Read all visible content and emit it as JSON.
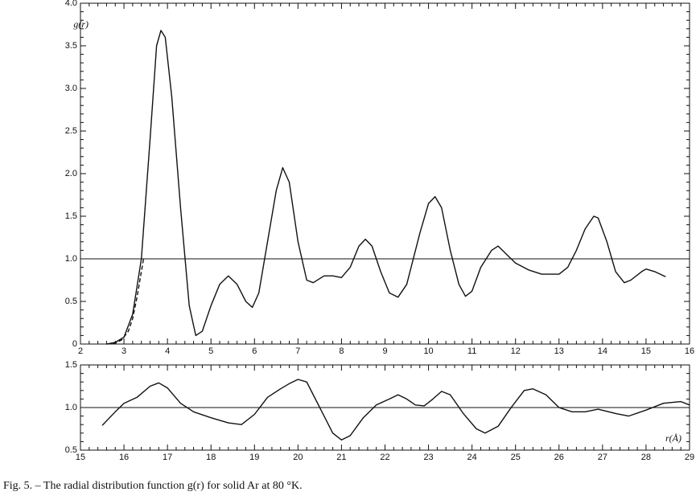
{
  "chart_data": [
    {
      "type": "line",
      "ylabel": "g(r)",
      "xlim": [
        2,
        16
      ],
      "xticks": [
        2,
        3,
        4,
        5,
        6,
        7,
        8,
        9,
        10,
        11,
        12,
        13,
        14,
        15,
        16
      ],
      "ylim": [
        0,
        4
      ],
      "yticks": [
        0,
        0.5,
        {
          "value": 1,
          "label": "1.0"
        },
        1.5,
        {
          "value": 2,
          "label": "2.0"
        },
        2.5,
        {
          "value": 3,
          "label": "3.0"
        },
        3.5,
        {
          "value": 4,
          "label": "4.0"
        }
      ],
      "reference_line": 1,
      "series": [
        {
          "color": "#111111",
          "x": [
            2.6,
            2.8,
            3.0,
            3.2,
            3.4,
            3.6,
            3.75,
            3.85,
            3.95,
            4.1,
            4.3,
            4.5,
            4.65,
            4.8,
            5.0,
            5.2,
            5.4,
            5.6,
            5.8,
            5.95,
            6.1,
            6.3,
            6.5,
            6.65,
            6.8,
            7.0,
            7.2,
            7.35,
            7.6,
            7.8,
            8.0,
            8.2,
            8.4,
            8.55,
            8.7,
            8.9,
            9.1,
            9.3,
            9.5,
            9.8,
            10.0,
            10.15,
            10.3,
            10.5,
            10.7,
            10.85,
            11.0,
            11.2,
            11.45,
            11.6,
            11.8,
            12.0,
            12.3,
            12.6,
            13.0,
            13.2,
            13.4,
            13.6,
            13.8,
            13.9,
            14.1,
            14.3,
            14.5,
            14.65,
            14.9,
            15.0,
            15.2,
            15.45
          ],
          "values": [
            0,
            0.02,
            0.08,
            0.35,
            1.0,
            2.4,
            3.5,
            3.68,
            3.6,
            2.9,
            1.6,
            0.45,
            0.1,
            0.15,
            0.45,
            0.7,
            0.8,
            0.7,
            0.5,
            0.43,
            0.6,
            1.2,
            1.8,
            2.07,
            1.9,
            1.2,
            0.75,
            0.72,
            0.8,
            0.8,
            0.78,
            0.9,
            1.15,
            1.23,
            1.15,
            0.85,
            0.6,
            0.55,
            0.7,
            1.3,
            1.65,
            1.73,
            1.6,
            1.1,
            0.7,
            0.56,
            0.62,
            0.9,
            1.1,
            1.15,
            1.05,
            0.95,
            0.87,
            0.82,
            0.82,
            0.9,
            1.1,
            1.35,
            1.5,
            1.48,
            1.2,
            0.85,
            0.72,
            0.75,
            0.85,
            0.88,
            0.85,
            0.79
          ]
        },
        {
          "color": "#111111",
          "dashed": true,
          "x": [
            2.6,
            2.8,
            2.95,
            3.1,
            3.2,
            3.3,
            3.4,
            3.45
          ],
          "values": [
            0,
            0.01,
            0.05,
            0.15,
            0.3,
            0.55,
            0.85,
            1.0
          ]
        }
      ]
    },
    {
      "type": "line",
      "xlabel": "r(Å)",
      "xlim": [
        15,
        29
      ],
      "xticks": [
        15,
        16,
        17,
        18,
        19,
        20,
        21,
        22,
        23,
        24,
        25,
        26,
        27,
        28,
        29
      ],
      "ylim": [
        0.5,
        1.5
      ],
      "yticks": [
        0.5,
        {
          "value": 1,
          "label": "1.0"
        },
        1.5
      ],
      "reference_line": 1,
      "series": [
        {
          "color": "#111111",
          "x": [
            15.5,
            15.8,
            16.0,
            16.3,
            16.6,
            16.8,
            17.0,
            17.3,
            17.6,
            18.0,
            18.4,
            18.7,
            19.0,
            19.3,
            19.6,
            19.8,
            20.0,
            20.2,
            20.5,
            20.8,
            21.0,
            21.2,
            21.5,
            21.8,
            22.1,
            22.3,
            22.5,
            22.7,
            22.9,
            23.1,
            23.3,
            23.5,
            23.8,
            24.1,
            24.3,
            24.6,
            24.9,
            25.2,
            25.4,
            25.7,
            26.0,
            26.3,
            26.6,
            26.9,
            27.3,
            27.6,
            28.0,
            28.4,
            28.8,
            29.0
          ],
          "values": [
            0.79,
            0.95,
            1.05,
            1.12,
            1.25,
            1.29,
            1.23,
            1.05,
            0.95,
            0.88,
            0.82,
            0.8,
            0.92,
            1.12,
            1.22,
            1.28,
            1.33,
            1.3,
            1.0,
            0.7,
            0.62,
            0.67,
            0.88,
            1.03,
            1.1,
            1.15,
            1.1,
            1.03,
            1.02,
            1.1,
            1.19,
            1.15,
            0.93,
            0.75,
            0.7,
            0.78,
            1.0,
            1.2,
            1.22,
            1.15,
            1.0,
            0.95,
            0.95,
            0.98,
            0.93,
            0.9,
            0.97,
            1.05,
            1.07,
            1.03
          ]
        }
      ]
    }
  ],
  "caption": "Fig. 5. – The radial distribution function g(r) for solid Ar at 80 °K."
}
